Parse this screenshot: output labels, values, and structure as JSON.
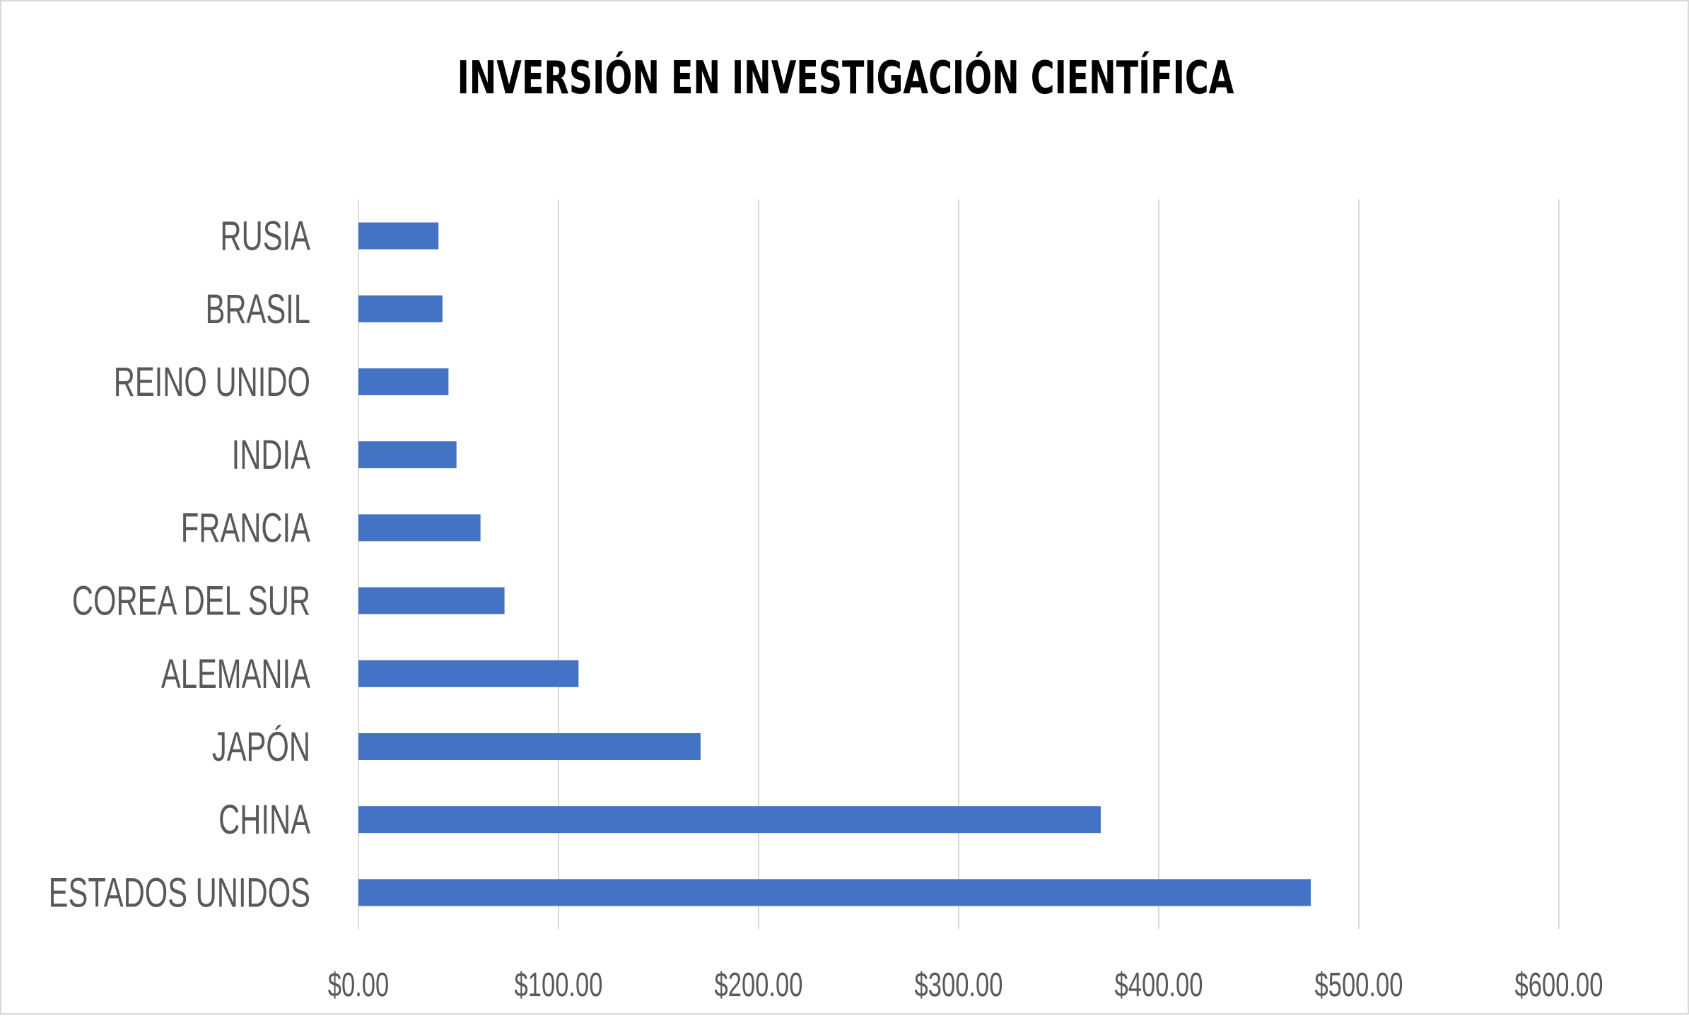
{
  "chart_data": {
    "type": "bar",
    "orientation": "horizontal",
    "title": "INVERSIÓN EN INVESTIGACIÓN CIENTÍFICA",
    "xlabel": "",
    "ylabel": "",
    "categories": [
      "RUSIA",
      "BRASIL",
      "REINO UNIDO",
      "INDIA",
      "FRANCIA",
      "COREA DEL SUR",
      "ALEMANIA",
      "JAPÓN",
      "CHINA",
      "ESTADOS UNIDOS"
    ],
    "values": [
      40,
      42,
      45,
      49,
      61,
      73,
      110,
      171,
      371,
      476
    ],
    "xlim": [
      0,
      600
    ],
    "x_ticks": [
      0,
      100,
      200,
      300,
      400,
      500,
      600
    ],
    "x_tick_labels": [
      "$0.00",
      "$100.00",
      "$200.00",
      "$300.00",
      "$400.00",
      "$500.00",
      "$600.00"
    ],
    "grid": true,
    "legend": "none",
    "colors": {
      "bar": "#4472c4",
      "grid": "#d9d9d9",
      "label": "#595959",
      "title": "#000000"
    }
  }
}
